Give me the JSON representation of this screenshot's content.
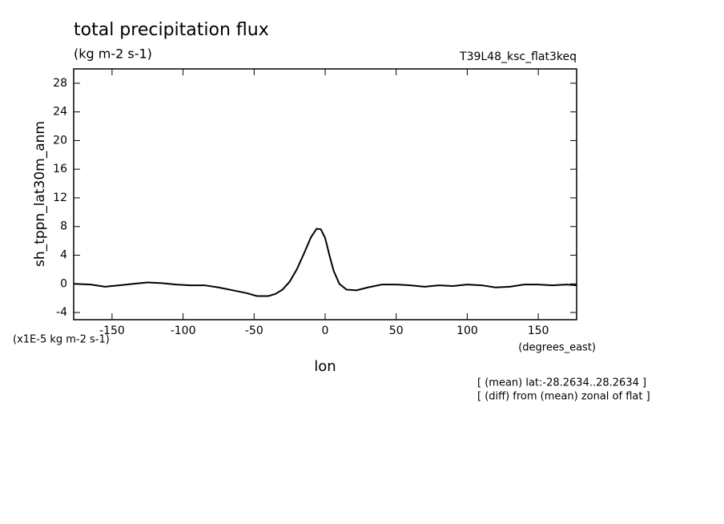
{
  "chart_data": {
    "type": "line",
    "title": "total precipitation flux",
    "subtitle": "(kg m-2 s-1)",
    "run_label": "T39L48_ksc_flat3keq",
    "y_label": "sh_tppn_lat30m_anm",
    "y_units": "(x1E-5 kg m-2 s-1)",
    "x_label": "lon",
    "x_units": "(degrees_east)",
    "notes": [
      "[ (mean) lat:-28.2634..28.2634 ]",
      "[ (diff) from (mean) zonal of flat ]"
    ],
    "xlim": [
      -177,
      177
    ],
    "xticks": [
      -150,
      -100,
      -50,
      0,
      50,
      100,
      150
    ],
    "ylim": [
      -5,
      30
    ],
    "yticks": [
      -4,
      0,
      4,
      8,
      12,
      16,
      20,
      24,
      28
    ],
    "x": [
      -177,
      -165,
      -155,
      -145,
      -135,
      -125,
      -115,
      -105,
      -95,
      -85,
      -75,
      -65,
      -55,
      -48,
      -40,
      -35,
      -30,
      -25,
      -20,
      -15,
      -10,
      -6,
      -3,
      0,
      3,
      6,
      10,
      15,
      22,
      30,
      40,
      50,
      60,
      70,
      80,
      90,
      100,
      110,
      120,
      130,
      140,
      150,
      160,
      170,
      177
    ],
    "series": [
      {
        "color": "#000000",
        "values": [
          0.0,
          -0.1,
          -0.4,
          -0.2,
          0.0,
          0.2,
          0.1,
          -0.1,
          -0.2,
          -0.2,
          -0.5,
          -0.9,
          -1.3,
          -1.7,
          -1.7,
          -1.4,
          -0.8,
          0.3,
          2.0,
          4.2,
          6.5,
          7.7,
          7.6,
          6.4,
          4.0,
          1.8,
          0.0,
          -0.8,
          -0.9,
          -0.5,
          -0.1,
          -0.1,
          -0.2,
          -0.4,
          -0.2,
          -0.3,
          -0.1,
          -0.2,
          -0.5,
          -0.4,
          -0.1,
          -0.1,
          -0.2,
          -0.1,
          -0.2
        ]
      }
    ]
  }
}
